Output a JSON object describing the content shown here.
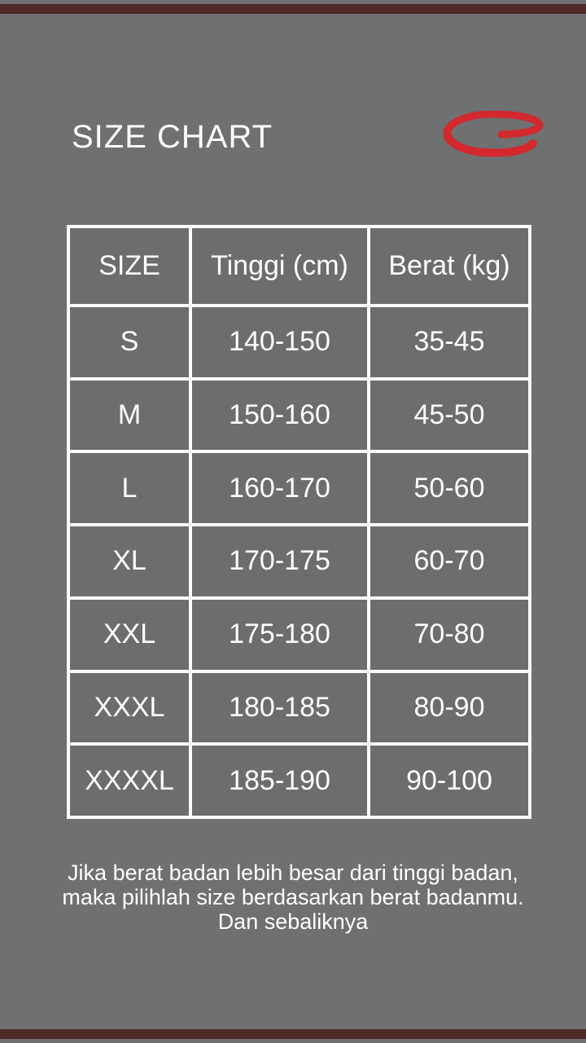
{
  "title": "SIZE CHART",
  "logo": {
    "name": "red-swoosh-oval",
    "color": "#d2282e"
  },
  "colors": {
    "background": "#6f7071",
    "cell_background": "#6c6d6f",
    "accent_bar": "#4e2a29",
    "table_border": "#fcfcfc",
    "text": "#ffffff",
    "logo_red": "#d2282e"
  },
  "chart_data": {
    "type": "table",
    "title": "SIZE CHART",
    "columns": [
      "SIZE",
      "Tinggi (cm)",
      "Berat (kg)"
    ],
    "rows": [
      [
        "S",
        "140-150",
        "35-45"
      ],
      [
        "M",
        "150-160",
        "45-50"
      ],
      [
        "L",
        "160-170",
        "50-60"
      ],
      [
        "XL",
        "170-175",
        "60-70"
      ],
      [
        "XXL",
        "175-180",
        "70-80"
      ],
      [
        "XXXL",
        "180-185",
        "80-90"
      ],
      [
        "XXXXL",
        "185-190",
        "90-100"
      ]
    ]
  },
  "footer": {
    "lines": [
      "Jika berat badan lebih besar dari tinggi badan,",
      "maka pilihlah size berdasarkan berat badanmu.",
      "Dan sebaliknya"
    ]
  }
}
